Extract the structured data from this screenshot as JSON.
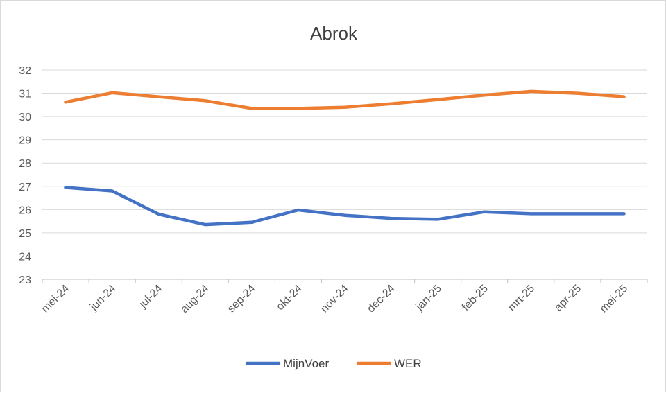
{
  "chart_data": {
    "type": "line",
    "title": "Abrok",
    "xlabel": "",
    "ylabel": "",
    "categories": [
      "mei-24",
      "jun-24",
      "jul-24",
      "aug-24",
      "sep-24",
      "okt-24",
      "nov-24",
      "dec-24",
      "jan-25",
      "feb-25",
      "mrt-25",
      "apr-25",
      "mei-25"
    ],
    "ylim": [
      23,
      32
    ],
    "yticks": [
      23,
      24,
      25,
      26,
      27,
      28,
      29,
      30,
      31,
      32
    ],
    "grid": true,
    "legend": "bottom",
    "series": [
      {
        "name": "MijnVoer",
        "color": "#4472c4",
        "values": [
          26.95,
          26.8,
          25.8,
          25.35,
          25.45,
          25.98,
          25.75,
          25.62,
          25.58,
          25.9,
          25.82,
          25.82,
          25.82
        ]
      },
      {
        "name": "WER",
        "color": "#ed7d31",
        "values": [
          30.62,
          31.02,
          30.85,
          30.68,
          30.35,
          30.35,
          30.4,
          30.55,
          30.73,
          30.92,
          31.08,
          31.0,
          30.85
        ]
      }
    ]
  }
}
